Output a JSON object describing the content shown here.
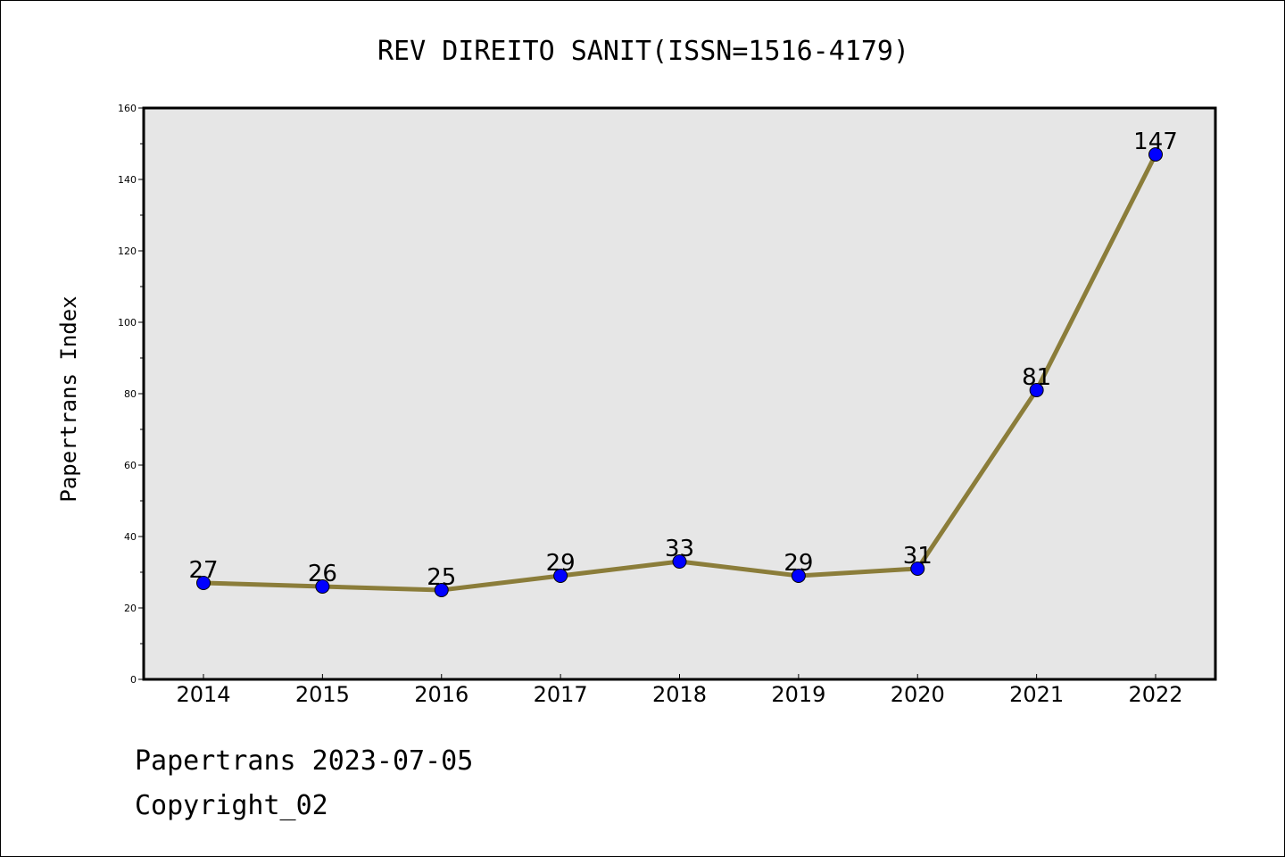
{
  "chart_data": {
    "type": "line",
    "title": "REV DIREITO SANIT(ISSN=1516-4179)",
    "xlabel": "",
    "ylabel": "Papertrans Index",
    "categories": [
      "2014",
      "2015",
      "2016",
      "2017",
      "2018",
      "2019",
      "2020",
      "2021",
      "2022"
    ],
    "series": [
      {
        "values": [
          27,
          26,
          25,
          29,
          33,
          29,
          31,
          81,
          147
        ]
      }
    ],
    "data_labels": [
      "27",
      "26",
      "25",
      "29",
      "33",
      "29",
      "31",
      "81",
      "147"
    ],
    "ylim": [
      0,
      160
    ],
    "yticks": [
      "0",
      "20",
      "40",
      "60",
      "80",
      "100",
      "120",
      "140",
      "160"
    ],
    "grid": false,
    "colors": {
      "line": "#8b7d3a",
      "marker": "#0000ff",
      "plot_background": "#e6e6e6"
    }
  },
  "footer": {
    "date_line": "Papertrans 2023-07-05",
    "copyright": "Copyright_02"
  }
}
